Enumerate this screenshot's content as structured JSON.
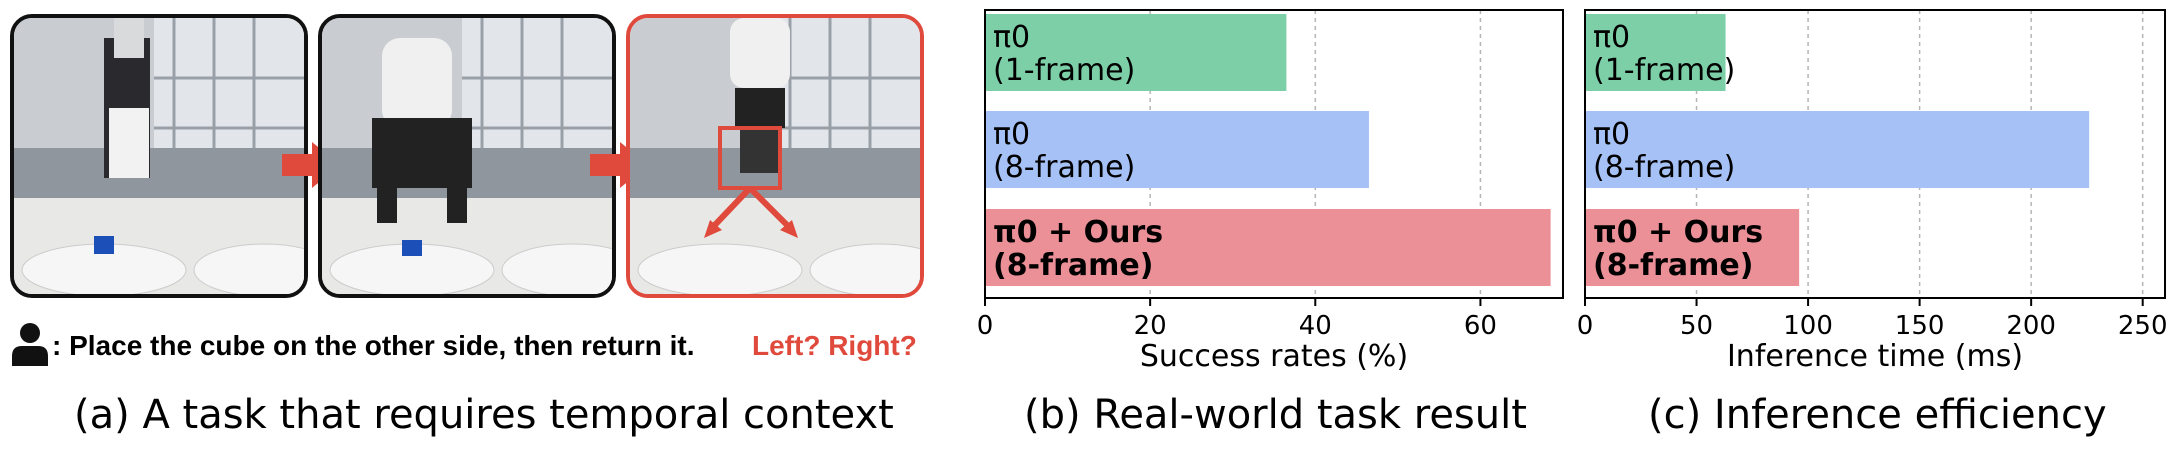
{
  "panel_a": {
    "instruction": ": Place the cube on the other side, then return it.",
    "question": "Left? Right?",
    "caption": "(a) A task that requires temporal context",
    "colors": {
      "highlight": "#e04a3c",
      "frame": "#111111"
    },
    "icons": [
      "user-icon",
      "right-arrow-icon"
    ]
  },
  "panel_b": {
    "caption": "(b) Real-world task result"
  },
  "panel_c": {
    "caption": "(c) Inference efficiency"
  },
  "chart_data": [
    {
      "type": "bar",
      "orientation": "horizontal",
      "title": "",
      "xlabel": "Success rates (%)",
      "ylabel": "",
      "xlim": [
        0,
        70
      ],
      "xticks": [
        0,
        20,
        40,
        60
      ],
      "grid": "vertical dashed",
      "bars": [
        {
          "line1": "π0",
          "line2": "(1-frame)",
          "value": 36.5,
          "color": "#7ccfa6",
          "bold": false
        },
        {
          "line1": "π0",
          "line2": "(8-frame)",
          "value": 46.5,
          "color": "#a6c1f6",
          "bold": false
        },
        {
          "line1": "π0 + Ours",
          "line2": "(8-frame)",
          "value": 68.5,
          "color": "#ec9098",
          "bold": true
        }
      ]
    },
    {
      "type": "bar",
      "orientation": "horizontal",
      "title": "",
      "xlabel": "Inference time (ms)",
      "ylabel": "",
      "xlim": [
        0,
        260
      ],
      "xticks": [
        0,
        50,
        100,
        150,
        200,
        250
      ],
      "grid": "vertical dashed",
      "bars": [
        {
          "line1": "π0",
          "line2": "(1-frame)",
          "value": 63,
          "color": "#7ccfa6",
          "bold": false
        },
        {
          "line1": "π0",
          "line2": "(8-frame)",
          "value": 226,
          "color": "#a6c1f6",
          "bold": false
        },
        {
          "line1": "π0 + Ours",
          "line2": "(8-frame)",
          "value": 96,
          "color": "#ec9098",
          "bold": true
        }
      ]
    }
  ]
}
